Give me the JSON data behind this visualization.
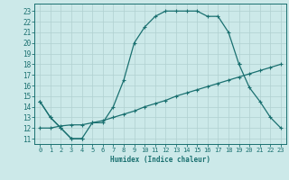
{
  "title": "",
  "xlabel": "Humidex (Indice chaleur)",
  "background_color": "#cce9e9",
  "grid_color": "#b0d0d0",
  "line_color": "#1a7070",
  "xlim": [
    -0.5,
    23.5
  ],
  "ylim": [
    10.5,
    23.7
  ],
  "yticks": [
    11,
    12,
    13,
    14,
    15,
    16,
    17,
    18,
    19,
    20,
    21,
    22,
    23
  ],
  "xticks": [
    0,
    1,
    2,
    3,
    4,
    5,
    6,
    7,
    8,
    9,
    10,
    11,
    12,
    13,
    14,
    15,
    16,
    17,
    18,
    19,
    20,
    21,
    22,
    23
  ],
  "line1_x": [
    0,
    1,
    2,
    3,
    4,
    5,
    6,
    7,
    8,
    9,
    10,
    11,
    12,
    13,
    14,
    15,
    16,
    17,
    18,
    19
  ],
  "line1_y": [
    14.5,
    13.0,
    12.0,
    11.0,
    11.0,
    12.5,
    12.5,
    14.0,
    16.5,
    20.0,
    21.5,
    22.5,
    23.0,
    23.0,
    23.0,
    23.0,
    22.5,
    22.5,
    21.0,
    18.0
  ],
  "line2_x": [
    0,
    1,
    2,
    3,
    4,
    19,
    20,
    21,
    22,
    23
  ],
  "line2_y": [
    14.5,
    13.0,
    12.0,
    11.0,
    11.0,
    18.0,
    15.8,
    14.5,
    13.0,
    12.0
  ],
  "line2_break": 5,
  "line3_x": [
    0,
    1,
    2,
    3,
    4,
    5,
    6,
    7,
    8,
    9,
    10,
    11,
    12,
    13,
    14,
    15,
    16,
    17,
    18,
    19,
    20,
    21,
    22,
    23
  ],
  "line3_y": [
    12.0,
    12.0,
    12.2,
    12.3,
    12.3,
    12.5,
    12.7,
    13.0,
    13.3,
    13.6,
    14.0,
    14.3,
    14.6,
    15.0,
    15.3,
    15.6,
    15.9,
    16.2,
    16.5,
    16.8,
    17.1,
    17.4,
    17.7,
    18.0
  ]
}
